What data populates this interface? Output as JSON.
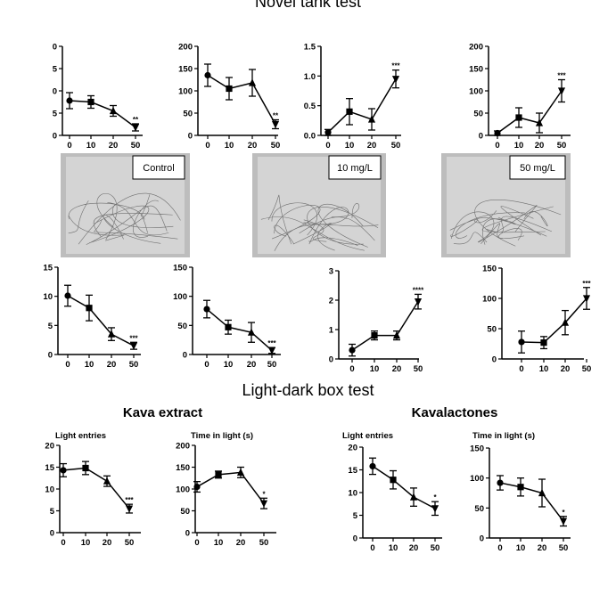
{
  "titles": {
    "top": "Novel tank test",
    "light_dark": "Light-dark box test",
    "kava": "Kava extract",
    "kavalactones": "Kavalactones"
  },
  "images": [
    {
      "label": "Control"
    },
    {
      "label": "10 mg/L"
    },
    {
      "label": "50 mg/L"
    }
  ],
  "chart_data": [
    {
      "type": "line",
      "x": [
        0,
        10,
        20,
        50
      ],
      "ylim": [
        0,
        20
      ],
      "yticks": [
        "0",
        "5",
        "0",
        "5",
        "0"
      ],
      "series": [
        {
          "values": [
            7.8,
            7.5,
            5.5,
            1.8
          ],
          "err": [
            1.8,
            1.4,
            1.2,
            0.8
          ]
        }
      ],
      "annotation": "**"
    },
    {
      "type": "line",
      "x": [
        0,
        10,
        20,
        50
      ],
      "ylim": [
        0,
        200
      ],
      "yticks": [
        "0",
        "50",
        "100",
        "150",
        "200"
      ],
      "series": [
        {
          "values": [
            135,
            105,
            118,
            25
          ],
          "err": [
            25,
            25,
            30,
            10
          ]
        }
      ],
      "annotation": "**"
    },
    {
      "type": "line",
      "x": [
        0,
        10,
        20,
        50
      ],
      "ylim": [
        0,
        1.5
      ],
      "yticks": [
        "0.0",
        "0.5",
        "1.0",
        "1.5"
      ],
      "series": [
        {
          "values": [
            0.05,
            0.4,
            0.27,
            0.95
          ],
          "err": [
            0.05,
            0.22,
            0.18,
            0.15
          ]
        }
      ],
      "annotation": "***"
    },
    {
      "type": "line",
      "x": [
        0,
        10,
        20,
        50
      ],
      "ylim": [
        0,
        200
      ],
      "yticks": [
        "0",
        "50",
        "100",
        "150",
        "200"
      ],
      "series": [
        {
          "values": [
            5,
            40,
            28,
            100
          ],
          "err": [
            5,
            22,
            22,
            25
          ]
        }
      ],
      "annotation": "***"
    },
    {
      "type": "line",
      "x": [
        0,
        10,
        20,
        50
      ],
      "ylim": [
        0,
        15
      ],
      "yticks": [
        "0",
        "5",
        "10",
        "15"
      ],
      "series": [
        {
          "values": [
            10.1,
            8,
            3.5,
            1.5
          ],
          "err": [
            1.8,
            2.2,
            1.1,
            0.6
          ]
        }
      ],
      "annotation": "***"
    },
    {
      "type": "line",
      "x": [
        0,
        10,
        20,
        50
      ],
      "ylim": [
        0,
        150
      ],
      "yticks": [
        "0",
        "50",
        "100",
        "150"
      ],
      "series": [
        {
          "values": [
            78,
            47,
            38,
            7
          ],
          "err": [
            15,
            12,
            17,
            5
          ]
        }
      ],
      "annotation": "***"
    },
    {
      "type": "line",
      "x": [
        0,
        10,
        20,
        50
      ],
      "ylim": [
        0,
        3
      ],
      "yticks": [
        "0",
        "1",
        "2",
        "3"
      ],
      "series": [
        {
          "values": [
            0.3,
            0.8,
            0.8,
            1.95
          ],
          "err": [
            0.2,
            0.15,
            0.15,
            0.25
          ]
        }
      ],
      "annotation": "****"
    },
    {
      "type": "line",
      "x": [
        0,
        10,
        20,
        50
      ],
      "ylim": [
        0,
        150
      ],
      "yticks": [
        "0",
        "50",
        "100",
        "150"
      ],
      "series": [
        {
          "values": [
            28,
            27,
            60,
            100
          ],
          "err": [
            18,
            10,
            20,
            18
          ]
        }
      ],
      "annotation": "***"
    },
    {
      "type": "line",
      "title": "Light entries",
      "x": [
        0,
        10,
        20,
        50
      ],
      "ylim": [
        0,
        20
      ],
      "yticks": [
        "0",
        "5",
        "10",
        "15",
        "20"
      ],
      "series": [
        {
          "values": [
            14.3,
            14.8,
            11.8,
            5.5
          ],
          "err": [
            1.5,
            1.5,
            1.2,
            1
          ]
        }
      ],
      "annotation": "***"
    },
    {
      "type": "line",
      "title": "Time in light (s)",
      "x": [
        0,
        10,
        20,
        50
      ],
      "ylim": [
        0,
        200
      ],
      "yticks": [
        "0",
        "50",
        "100",
        "150",
        "200"
      ],
      "series": [
        {
          "values": [
            105,
            133,
            138,
            67
          ],
          "err": [
            12,
            8,
            12,
            12
          ]
        }
      ],
      "annotation": "*"
    },
    {
      "type": "line",
      "title": "Light entries",
      "x": [
        0,
        10,
        20,
        50
      ],
      "ylim": [
        0,
        20
      ],
      "yticks": [
        "0",
        "5",
        "10",
        "15",
        "20"
      ],
      "series": [
        {
          "values": [
            15.8,
            12.8,
            9,
            6.5
          ],
          "err": [
            1.8,
            2,
            2,
            1.5
          ]
        }
      ],
      "annotation": "*"
    },
    {
      "type": "line",
      "title": "Time in light (s)",
      "x": [
        0,
        10,
        20,
        50
      ],
      "ylim": [
        0,
        150
      ],
      "yticks": [
        "0",
        "50",
        "100",
        "150"
      ],
      "series": [
        {
          "values": [
            92,
            85,
            75,
            28
          ],
          "err": [
            12,
            15,
            23,
            8
          ]
        }
      ],
      "annotation": "*"
    }
  ]
}
